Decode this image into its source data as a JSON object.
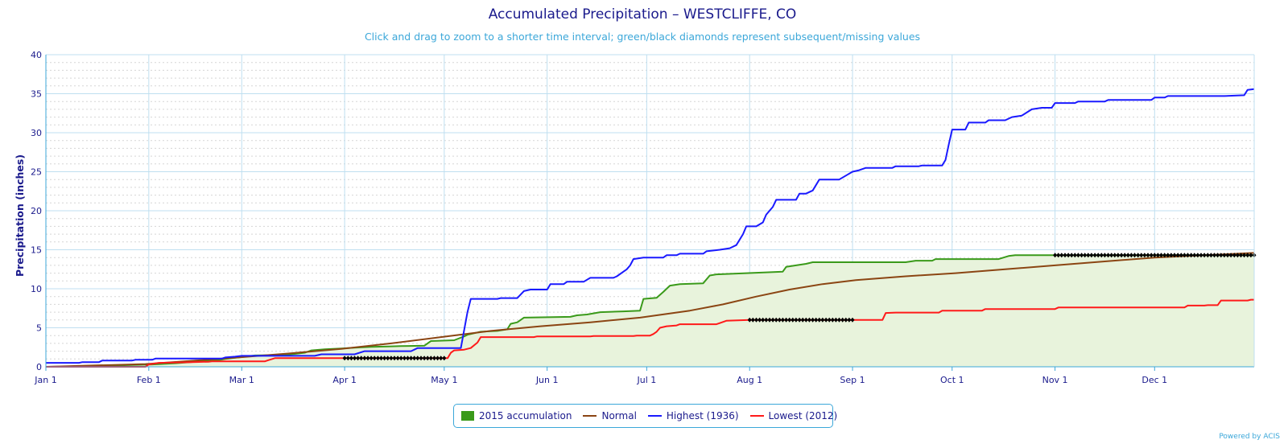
{
  "chart_data": {
    "type": "line",
    "title": "Accumulated Precipitation – WESTCLIFFE, CO",
    "subtitle": "Click and drag to zoom to a shorter time interval; green/black diamonds represent subsequent/missing values",
    "xlabel": "",
    "ylabel": "Precipitation (inches)",
    "ylim": [
      0,
      40
    ],
    "yticks": [
      0,
      5,
      10,
      15,
      20,
      25,
      30,
      35,
      40
    ],
    "x_unit": "day of year",
    "xlim": [
      1,
      365
    ],
    "xticks": [
      {
        "day": 1,
        "label": "Jan 1"
      },
      {
        "day": 32,
        "label": "Feb 1"
      },
      {
        "day": 60,
        "label": "Mar 1"
      },
      {
        "day": 91,
        "label": "Apr 1"
      },
      {
        "day": 121,
        "label": "May 1"
      },
      {
        "day": 152,
        "label": "Jun 1"
      },
      {
        "day": 182,
        "label": "Jul 1"
      },
      {
        "day": 213,
        "label": "Aug 1"
      },
      {
        "day": 244,
        "label": "Sep 1"
      },
      {
        "day": 274,
        "label": "Oct 1"
      },
      {
        "day": 305,
        "label": "Nov 1"
      },
      {
        "day": 335,
        "label": "Dec 1"
      }
    ],
    "grid": true,
    "legend_position": "bottom-center",
    "series": [
      {
        "name": "2015 accumulation",
        "color": "#3a9a1a",
        "fill": "#e8f3dc",
        "style": "area",
        "points": [
          [
            1,
            0
          ],
          [
            10,
            0.05
          ],
          [
            20,
            0.15
          ],
          [
            28,
            0.25
          ],
          [
            33,
            0.3
          ],
          [
            40,
            0.45
          ],
          [
            46,
            0.65
          ],
          [
            53,
            0.85
          ],
          [
            55,
            1.0
          ],
          [
            58,
            1.15
          ],
          [
            61,
            1.3
          ],
          [
            64,
            1.45
          ],
          [
            72,
            1.5
          ],
          [
            76,
            1.65
          ],
          [
            79,
            1.8
          ],
          [
            81,
            2.1
          ],
          [
            85,
            2.25
          ],
          [
            90,
            2.35
          ],
          [
            94,
            2.45
          ],
          [
            99,
            2.55
          ],
          [
            104,
            2.6
          ],
          [
            108,
            2.65
          ],
          [
            115,
            2.7
          ],
          [
            117,
            3.3
          ],
          [
            124,
            3.4
          ],
          [
            127,
            3.9
          ],
          [
            128,
            4.1
          ],
          [
            130,
            4.3
          ],
          [
            132,
            4.5
          ],
          [
            137,
            4.6
          ],
          [
            140,
            4.8
          ],
          [
            141,
            5.5
          ],
          [
            143,
            5.7
          ],
          [
            145,
            6.3
          ],
          [
            159,
            6.4
          ],
          [
            161,
            6.6
          ],
          [
            164,
            6.7
          ],
          [
            168,
            7.0
          ],
          [
            175,
            7.1
          ],
          [
            180,
            7.2
          ],
          [
            181,
            8.7
          ],
          [
            185,
            8.85
          ],
          [
            187,
            9.6
          ],
          [
            189,
            10.4
          ],
          [
            192,
            10.6
          ],
          [
            199,
            10.7
          ],
          [
            201,
            11.7
          ],
          [
            203,
            11.85
          ],
          [
            212,
            12.0
          ],
          [
            218,
            12.1
          ],
          [
            223,
            12.2
          ],
          [
            224,
            12.8
          ],
          [
            227,
            13.0
          ],
          [
            230,
            13.2
          ],
          [
            232,
            13.4
          ],
          [
            260,
            13.4
          ],
          [
            263,
            13.6
          ],
          [
            268,
            13.6
          ],
          [
            269,
            13.8
          ],
          [
            288,
            13.8
          ],
          [
            291,
            14.2
          ],
          [
            293,
            14.3
          ],
          [
            305,
            14.3
          ],
          [
            365,
            14.3
          ]
        ]
      },
      {
        "name": "Normal",
        "color": "#8b4513",
        "style": "line",
        "points": [
          [
            1,
            0
          ],
          [
            31,
            0.35
          ],
          [
            59,
            1.2
          ],
          [
            74,
            1.7
          ],
          [
            90,
            2.3
          ],
          [
            105,
            3.0
          ],
          [
            120,
            3.8
          ],
          [
            135,
            4.6
          ],
          [
            150,
            5.2
          ],
          [
            165,
            5.7
          ],
          [
            180,
            6.3
          ],
          [
            195,
            7.2
          ],
          [
            205,
            8.0
          ],
          [
            215,
            9.0
          ],
          [
            225,
            9.9
          ],
          [
            235,
            10.6
          ],
          [
            245,
            11.1
          ],
          [
            260,
            11.6
          ],
          [
            275,
            12.0
          ],
          [
            290,
            12.5
          ],
          [
            305,
            13.0
          ],
          [
            320,
            13.5
          ],
          [
            335,
            14.0
          ],
          [
            350,
            14.3
          ],
          [
            365,
            14.6
          ]
        ]
      },
      {
        "name": "Highest (1936)",
        "color": "#1a1aff",
        "style": "line",
        "points": [
          [
            1,
            0.5
          ],
          [
            11,
            0.5
          ],
          [
            12,
            0.6
          ],
          [
            17,
            0.6
          ],
          [
            18,
            0.8
          ],
          [
            27,
            0.8
          ],
          [
            28,
            0.9
          ],
          [
            33,
            0.9
          ],
          [
            34,
            1.05
          ],
          [
            54,
            1.05
          ],
          [
            55,
            1.2
          ],
          [
            58,
            1.3
          ],
          [
            60,
            1.4
          ],
          [
            82,
            1.4
          ],
          [
            84,
            1.6
          ],
          [
            94,
            1.6
          ],
          [
            97,
            2.0
          ],
          [
            111,
            2.0
          ],
          [
            113,
            2.4
          ],
          [
            126,
            2.4
          ],
          [
            128,
            7.0
          ],
          [
            129,
            8.7
          ],
          [
            137,
            8.7
          ],
          [
            138,
            8.8
          ],
          [
            143,
            8.8
          ],
          [
            145,
            9.7
          ],
          [
            147,
            9.9
          ],
          [
            152,
            9.9
          ],
          [
            153,
            10.6
          ],
          [
            157,
            10.6
          ],
          [
            158,
            10.9
          ],
          [
            163,
            10.9
          ],
          [
            165,
            11.4
          ],
          [
            172,
            11.4
          ],
          [
            173,
            11.6
          ],
          [
            175,
            12.2
          ],
          [
            176,
            12.5
          ],
          [
            177,
            13.0
          ],
          [
            178,
            13.8
          ],
          [
            181,
            14.0
          ],
          [
            187,
            14.0
          ],
          [
            188,
            14.3
          ],
          [
            191,
            14.3
          ],
          [
            192,
            14.5
          ],
          [
            199,
            14.5
          ],
          [
            200,
            14.8
          ],
          [
            204,
            15.0
          ],
          [
            207,
            15.2
          ],
          [
            209,
            15.6
          ],
          [
            211,
            17.0
          ],
          [
            212,
            18.0
          ],
          [
            215,
            18.0
          ],
          [
            217,
            18.5
          ],
          [
            218,
            19.5
          ],
          [
            220,
            20.5
          ],
          [
            221,
            21.4
          ],
          [
            227,
            21.4
          ],
          [
            228,
            22.2
          ],
          [
            230,
            22.2
          ],
          [
            232,
            22.6
          ],
          [
            234,
            24.0
          ],
          [
            240,
            24.0
          ],
          [
            242,
            24.5
          ],
          [
            244,
            25.0
          ],
          [
            246,
            25.2
          ],
          [
            248,
            25.5
          ],
          [
            256,
            25.5
          ],
          [
            257,
            25.7
          ],
          [
            264,
            25.7
          ],
          [
            265,
            25.8
          ],
          [
            271,
            25.8
          ],
          [
            272,
            26.5
          ],
          [
            273,
            28.5
          ],
          [
            274,
            30.4
          ],
          [
            278,
            30.4
          ],
          [
            279,
            31.3
          ],
          [
            284,
            31.3
          ],
          [
            285,
            31.6
          ],
          [
            290,
            31.6
          ],
          [
            292,
            32.0
          ],
          [
            295,
            32.2
          ],
          [
            298,
            33.0
          ],
          [
            301,
            33.2
          ],
          [
            304,
            33.2
          ],
          [
            305,
            33.8
          ],
          [
            311,
            33.8
          ],
          [
            312,
            34.0
          ],
          [
            320,
            34.0
          ],
          [
            321,
            34.2
          ],
          [
            334,
            34.2
          ],
          [
            335,
            34.5
          ],
          [
            338,
            34.5
          ],
          [
            339,
            34.7
          ],
          [
            356,
            34.7
          ],
          [
            362,
            34.8
          ],
          [
            363,
            35.5
          ],
          [
            365,
            35.6
          ]
        ]
      },
      {
        "name": "Lowest (2012)",
        "color": "#ff1a1a",
        "style": "line",
        "points": [
          [
            1,
            0
          ],
          [
            31,
            0
          ],
          [
            32,
            0.3
          ],
          [
            35,
            0.5
          ],
          [
            45,
            0.6
          ],
          [
            50,
            0.65
          ],
          [
            51,
            0.7
          ],
          [
            67,
            0.7
          ],
          [
            68,
            0.85
          ],
          [
            70,
            1.1
          ],
          [
            122,
            1.1
          ],
          [
            123,
            1.8
          ],
          [
            124,
            2.1
          ],
          [
            127,
            2.2
          ],
          [
            129,
            2.4
          ],
          [
            131,
            3.1
          ],
          [
            132,
            3.8
          ],
          [
            148,
            3.8
          ],
          [
            149,
            3.9
          ],
          [
            165,
            3.9
          ],
          [
            166,
            3.95
          ],
          [
            178,
            3.95
          ],
          [
            179,
            4.0
          ],
          [
            183,
            4.0
          ],
          [
            184,
            4.2
          ],
          [
            185,
            4.5
          ],
          [
            186,
            5.0
          ],
          [
            188,
            5.2
          ],
          [
            191,
            5.3
          ],
          [
            192,
            5.45
          ],
          [
            203,
            5.45
          ],
          [
            204,
            5.6
          ],
          [
            206,
            5.9
          ],
          [
            213,
            6.0
          ],
          [
            253,
            6.0
          ],
          [
            254,
            6.9
          ],
          [
            257,
            6.95
          ],
          [
            270,
            6.95
          ],
          [
            271,
            7.2
          ],
          [
            283,
            7.2
          ],
          [
            284,
            7.4
          ],
          [
            305,
            7.4
          ],
          [
            306,
            7.6
          ],
          [
            344,
            7.6
          ],
          [
            345,
            7.85
          ],
          [
            350,
            7.85
          ],
          [
            351,
            7.9
          ],
          [
            354,
            7.9
          ],
          [
            355,
            8.5
          ],
          [
            363,
            8.5
          ],
          [
            364,
            8.6
          ],
          [
            365,
            8.6
          ]
        ]
      }
    ],
    "missing_value_markers": [
      {
        "color": "#000000",
        "y": 1.1,
        "x_range": [
          91,
          121
        ]
      },
      {
        "color": "#000000",
        "y": 6.0,
        "x_range": [
          213,
          244
        ]
      },
      {
        "color": "#000000",
        "y": 14.3,
        "x_range": [
          305,
          365
        ]
      }
    ]
  },
  "legend": {
    "items": [
      {
        "label": "2015 accumulation",
        "color": "#3a9a1a",
        "kind": "swatch"
      },
      {
        "label": "Normal",
        "color": "#8b4513",
        "kind": "line"
      },
      {
        "label": "Highest (1936)",
        "color": "#1a1aff",
        "kind": "line"
      },
      {
        "label": "Lowest (2012)",
        "color": "#ff1a1a",
        "kind": "line"
      }
    ]
  },
  "credit": "Powered by ACIS"
}
